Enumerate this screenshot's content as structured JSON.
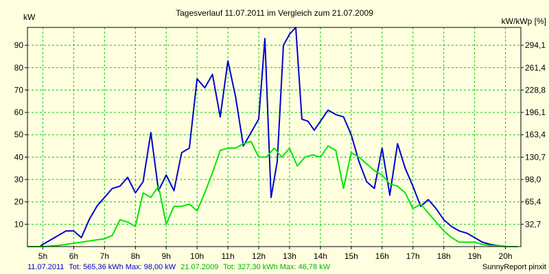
{
  "chart_data": {
    "type": "line",
    "title": "Tagesverlauf 11.07.2011 im Vergleich zum 21.07.2009",
    "ylabel_left": "kW",
    "ylabel_right": "kW/kWp [%]",
    "xlim": [
      4.5,
      20.5
    ],
    "ylim": [
      0,
      98
    ],
    "x_ticks": [
      5,
      6,
      7,
      8,
      9,
      10,
      11,
      12,
      13,
      14,
      15,
      16,
      17,
      18,
      19,
      20
    ],
    "x_tick_labels": [
      "5h",
      "6h",
      "7h",
      "8h",
      "9h",
      "10h",
      "11h",
      "12h",
      "13h",
      "14h",
      "15h",
      "16h",
      "17h",
      "18h",
      "19h",
      "20h"
    ],
    "y_ticks": [
      10,
      20,
      30,
      40,
      50,
      60,
      70,
      80,
      90
    ],
    "y_tick_labels": [
      "10",
      "20",
      "30",
      "40",
      "50",
      "60",
      "70",
      "80",
      "90"
    ],
    "y2_tick_labels": [
      "32,7",
      "65,4",
      "98,0",
      "130,7",
      "163,4",
      "196,1",
      "228,8",
      "261,4",
      "294,1"
    ],
    "grid": true,
    "series": [
      {
        "name": "11.07.2011",
        "color": "#0000cc",
        "x": [
          4.5,
          4.9,
          5.0,
          5.25,
          5.5,
          5.75,
          6.0,
          6.25,
          6.5,
          6.75,
          7.0,
          7.25,
          7.5,
          7.75,
          8.0,
          8.25,
          8.5,
          8.75,
          9.0,
          9.25,
          9.5,
          9.75,
          10.0,
          10.25,
          10.5,
          10.75,
          11.0,
          11.25,
          11.5,
          11.75,
          12.0,
          12.2,
          12.4,
          12.6,
          12.8,
          13.0,
          13.2,
          13.4,
          13.6,
          13.8,
          14.0,
          14.25,
          14.5,
          14.75,
          15.0,
          15.25,
          15.5,
          15.75,
          16.0,
          16.25,
          16.5,
          16.75,
          17.0,
          17.25,
          17.5,
          17.75,
          18.0,
          18.25,
          18.5,
          18.75,
          19.0,
          19.25,
          19.5,
          19.75,
          20.0,
          20.25,
          20.4
        ],
        "values": [
          0,
          0,
          1,
          3,
          5,
          7,
          7,
          4,
          12,
          18,
          22,
          26,
          27,
          31,
          24,
          29,
          51,
          25,
          32,
          25,
          42,
          44,
          75,
          71,
          77,
          58,
          83,
          67,
          45,
          51,
          57,
          93,
          22,
          38,
          90,
          95,
          98,
          57,
          56,
          52,
          56,
          61,
          59,
          58,
          50,
          38,
          29,
          26,
          44,
          23,
          46,
          35,
          27,
          18,
          21,
          17,
          12,
          9,
          7,
          6,
          4,
          2,
          1,
          0.5,
          0,
          0,
          0
        ]
      },
      {
        "name": "21.07.2009",
        "color": "#00e600",
        "x": [
          4.5,
          5.0,
          5.5,
          6.0,
          6.5,
          7.0,
          7.25,
          7.5,
          7.75,
          8.0,
          8.25,
          8.5,
          8.75,
          9.0,
          9.25,
          9.5,
          9.75,
          10.0,
          10.25,
          10.5,
          10.75,
          11.0,
          11.25,
          11.5,
          11.75,
          12.0,
          12.25,
          12.5,
          12.75,
          13.0,
          13.25,
          13.5,
          13.75,
          14.0,
          14.25,
          14.5,
          14.75,
          15.0,
          15.25,
          15.5,
          15.75,
          16.0,
          16.25,
          16.5,
          16.75,
          17.0,
          17.25,
          17.5,
          17.75,
          18.0,
          18.25,
          18.5,
          18.75,
          19.0,
          19.25,
          19.5,
          19.75,
          20.0,
          20.4
        ],
        "values": [
          0,
          0,
          0.5,
          1.5,
          2.5,
          3.5,
          5,
          12,
          11,
          9,
          24,
          22,
          27,
          10,
          18,
          18,
          19,
          16,
          24,
          33,
          43,
          44,
          44,
          46,
          47,
          40,
          40,
          44,
          40,
          44,
          36,
          40,
          41,
          40,
          45,
          43,
          26,
          42,
          40,
          37,
          34,
          32,
          28,
          27,
          24,
          17,
          19,
          15,
          11,
          7,
          4,
          2,
          2,
          2,
          1,
          0.5,
          0.5,
          0,
          0
        ]
      }
    ]
  },
  "legend": {
    "series1_date": "11.07.2011",
    "series1_stats": "Tot: 565,36 kWh Max: 98,00 kW",
    "series2_date": "21.07.2009",
    "series2_stats": "Tot: 327,30 kWh Max: 46,78 kW"
  },
  "credit": "SunnyReport pinxit"
}
